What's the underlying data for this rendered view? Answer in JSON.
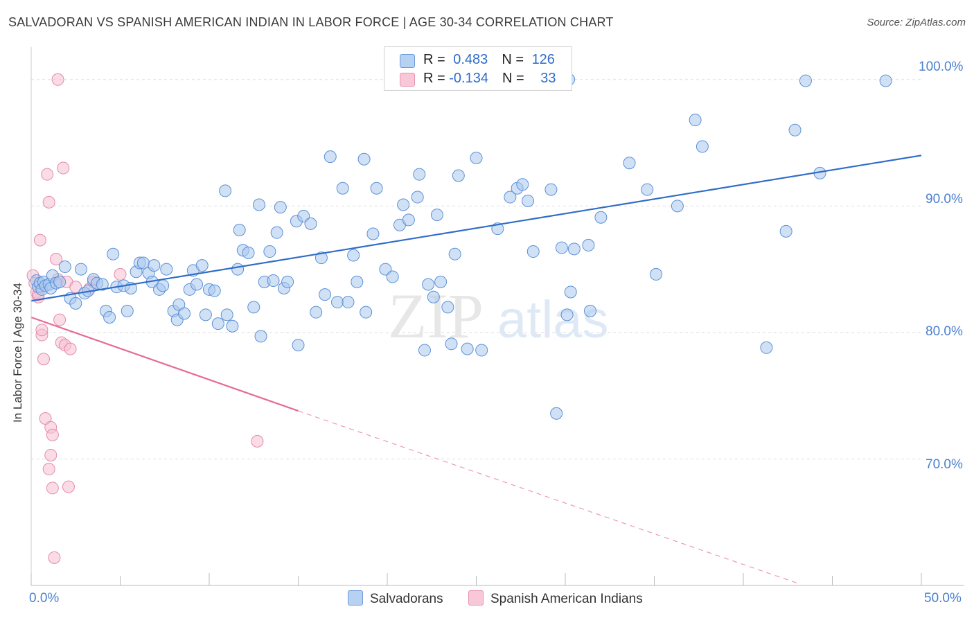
{
  "title": "SALVADORAN VS SPANISH AMERICAN INDIAN IN LABOR FORCE | AGE 30-34 CORRELATION CHART",
  "source": "Source: ZipAtlas.com",
  "watermark": {
    "zip": "ZIP",
    "atlas": "atlas"
  },
  "legend": {
    "rows": [
      {
        "r_label": "R = ",
        "r_value": "0.483",
        "n_label": "N = ",
        "n_value": "126"
      },
      {
        "r_label": "R = ",
        "r_value": "-0.134",
        "n_label": "N = ",
        "n_value": "33"
      }
    ]
  },
  "colors": {
    "blue_fill": "#a9c8ef",
    "blue_stroke": "#5b90d6",
    "blue_line": "#2f6cc8",
    "pink_fill": "#f6bfd1",
    "pink_stroke": "#e68aa9",
    "pink_line": "#e56b95",
    "grid": "#dddddd",
    "axis_text": "#4a7fd0"
  },
  "chart_data": {
    "type": "scatter",
    "title": "SALVADORAN VS SPANISH AMERICAN INDIAN IN LABOR FORCE | AGE 30-34 CORRELATION CHART",
    "xlabel": "",
    "ylabel": "In Labor Force | Age 30-34",
    "xlim": [
      0,
      50
    ],
    "ylim": [
      60,
      103
    ],
    "x_tick_labels": [
      "0.0%",
      "50.0%"
    ],
    "y_ticks": [
      70,
      80,
      90,
      100
    ],
    "y_tick_labels": [
      "70.0%",
      "80.0%",
      "90.0%",
      "100.0%"
    ],
    "grid": true,
    "legend_position": "top-center",
    "series": [
      {
        "name": "Salvadorans",
        "color": "#a9c8ef",
        "trend": {
          "x0": 0,
          "y0": 82.5,
          "x1": 50,
          "y1": 94.0
        },
        "points": [
          [
            0.3,
            84.1
          ],
          [
            0.4,
            83.6
          ],
          [
            0.5,
            83.9
          ],
          [
            0.6,
            83.4
          ],
          [
            0.7,
            84.0
          ],
          [
            0.8,
            83.7
          ],
          [
            1.0,
            83.8
          ],
          [
            1.1,
            83.5
          ],
          [
            1.2,
            84.5
          ],
          [
            1.4,
            83.9
          ],
          [
            1.6,
            84.0
          ],
          [
            1.9,
            85.2
          ],
          [
            2.2,
            82.7
          ],
          [
            2.5,
            82.3
          ],
          [
            2.8,
            85.0
          ],
          [
            3.0,
            83.1
          ],
          [
            3.2,
            83.3
          ],
          [
            3.5,
            84.2
          ],
          [
            3.7,
            83.9
          ],
          [
            4.0,
            83.8
          ],
          [
            4.2,
            81.7
          ],
          [
            4.4,
            81.2
          ],
          [
            4.6,
            86.2
          ],
          [
            4.8,
            83.6
          ],
          [
            5.2,
            83.7
          ],
          [
            5.4,
            81.7
          ],
          [
            5.6,
            83.5
          ],
          [
            5.9,
            84.8
          ],
          [
            6.1,
            85.5
          ],
          [
            6.3,
            85.5
          ],
          [
            6.6,
            84.7
          ],
          [
            6.8,
            84.0
          ],
          [
            6.9,
            85.3
          ],
          [
            7.2,
            83.4
          ],
          [
            7.4,
            83.7
          ],
          [
            7.6,
            85.0
          ],
          [
            8.0,
            81.7
          ],
          [
            8.2,
            81.0
          ],
          [
            8.3,
            82.2
          ],
          [
            8.6,
            81.5
          ],
          [
            8.9,
            83.4
          ],
          [
            9.1,
            84.9
          ],
          [
            9.3,
            83.8
          ],
          [
            9.6,
            85.3
          ],
          [
            9.8,
            81.4
          ],
          [
            10.0,
            83.4
          ],
          [
            10.3,
            83.3
          ],
          [
            10.5,
            80.7
          ],
          [
            10.9,
            91.2
          ],
          [
            11.0,
            81.4
          ],
          [
            11.3,
            80.5
          ],
          [
            11.6,
            85.0
          ],
          [
            11.7,
            88.1
          ],
          [
            11.9,
            86.5
          ],
          [
            12.2,
            86.3
          ],
          [
            12.5,
            82.0
          ],
          [
            12.8,
            90.1
          ],
          [
            12.9,
            79.7
          ],
          [
            13.1,
            84.0
          ],
          [
            13.4,
            86.4
          ],
          [
            13.6,
            84.1
          ],
          [
            13.8,
            87.9
          ],
          [
            14.0,
            89.9
          ],
          [
            14.2,
            83.5
          ],
          [
            14.4,
            84.0
          ],
          [
            14.9,
            88.8
          ],
          [
            15.0,
            79.0
          ],
          [
            15.3,
            89.2
          ],
          [
            15.7,
            88.6
          ],
          [
            16.0,
            81.6
          ],
          [
            16.3,
            85.9
          ],
          [
            16.5,
            83.0
          ],
          [
            16.8,
            93.9
          ],
          [
            17.2,
            82.4
          ],
          [
            17.5,
            91.4
          ],
          [
            17.8,
            82.4
          ],
          [
            18.1,
            86.1
          ],
          [
            18.3,
            84.0
          ],
          [
            18.7,
            93.7
          ],
          [
            18.8,
            81.6
          ],
          [
            19.2,
            87.8
          ],
          [
            19.4,
            91.4
          ],
          [
            19.9,
            85.0
          ],
          [
            20.3,
            84.4
          ],
          [
            20.7,
            88.5
          ],
          [
            20.9,
            90.1
          ],
          [
            21.2,
            88.9
          ],
          [
            21.7,
            90.7
          ],
          [
            21.8,
            92.5
          ],
          [
            22.1,
            78.6
          ],
          [
            22.3,
            83.8
          ],
          [
            22.6,
            82.8
          ],
          [
            22.8,
            89.3
          ],
          [
            23.0,
            84.0
          ],
          [
            23.4,
            82.0
          ],
          [
            23.6,
            79.1
          ],
          [
            23.8,
            86.2
          ],
          [
            24.0,
            92.4
          ],
          [
            24.5,
            78.7
          ],
          [
            25.0,
            93.8
          ],
          [
            25.3,
            78.6
          ],
          [
            26.2,
            88.2
          ],
          [
            26.9,
            90.7
          ],
          [
            27.3,
            91.4
          ],
          [
            27.6,
            91.7
          ],
          [
            27.9,
            90.4
          ],
          [
            28.2,
            86.4
          ],
          [
            29.2,
            91.3
          ],
          [
            29.5,
            73.6
          ],
          [
            29.8,
            86.7
          ],
          [
            30.1,
            81.4
          ],
          [
            30.3,
            83.2
          ],
          [
            30.5,
            86.6
          ],
          [
            31.3,
            86.9
          ],
          [
            31.4,
            81.7
          ],
          [
            32.0,
            89.1
          ],
          [
            33.6,
            93.4
          ],
          [
            34.6,
            91.3
          ],
          [
            35.1,
            84.6
          ],
          [
            36.3,
            90.0
          ],
          [
            37.7,
            94.7
          ],
          [
            41.3,
            78.8
          ],
          [
            42.4,
            88.0
          ],
          [
            42.9,
            96.0
          ],
          [
            43.5,
            99.9
          ],
          [
            44.3,
            92.6
          ],
          [
            48.0,
            99.9
          ],
          [
            25.8,
            100.0
          ],
          [
            30.2,
            100.0
          ],
          [
            37.3,
            96.8
          ]
        ]
      },
      {
        "name": "Spanish American Indians",
        "color": "#f6bfd1",
        "trend": {
          "x0": 0,
          "y0": 81.2,
          "x1": 15,
          "y1": 73.8,
          "dashed_x1": 43,
          "dashed_y1": 60.2
        },
        "points": [
          [
            0.1,
            84.5
          ],
          [
            0.2,
            83.9
          ],
          [
            0.3,
            83.2
          ],
          [
            0.4,
            82.8
          ],
          [
            0.5,
            87.3
          ],
          [
            0.6,
            79.8
          ],
          [
            0.7,
            77.9
          ],
          [
            0.8,
            73.2
          ],
          [
            0.9,
            92.5
          ],
          [
            1.0,
            90.3
          ],
          [
            1.1,
            72.5
          ],
          [
            1.2,
            71.9
          ],
          [
            1.4,
            85.8
          ],
          [
            1.5,
            84.2
          ],
          [
            1.6,
            81.0
          ],
          [
            1.7,
            79.2
          ],
          [
            1.8,
            93.0
          ],
          [
            1.9,
            79.0
          ],
          [
            2.0,
            84.0
          ],
          [
            2.1,
            67.8
          ],
          [
            2.2,
            78.7
          ],
          [
            0.6,
            80.2
          ],
          [
            1.0,
            69.2
          ],
          [
            1.1,
            70.3
          ],
          [
            1.2,
            67.7
          ],
          [
            1.3,
            62.2
          ],
          [
            1.5,
            100.0
          ],
          [
            3.3,
            83.5
          ],
          [
            3.5,
            84.0
          ],
          [
            5.0,
            84.6
          ],
          [
            12.7,
            71.4
          ],
          [
            0.4,
            83.0
          ],
          [
            2.5,
            83.6
          ]
        ]
      }
    ]
  },
  "bottom_legend": {
    "series1": "Salvadorans",
    "series2": "Spanish American Indians"
  }
}
